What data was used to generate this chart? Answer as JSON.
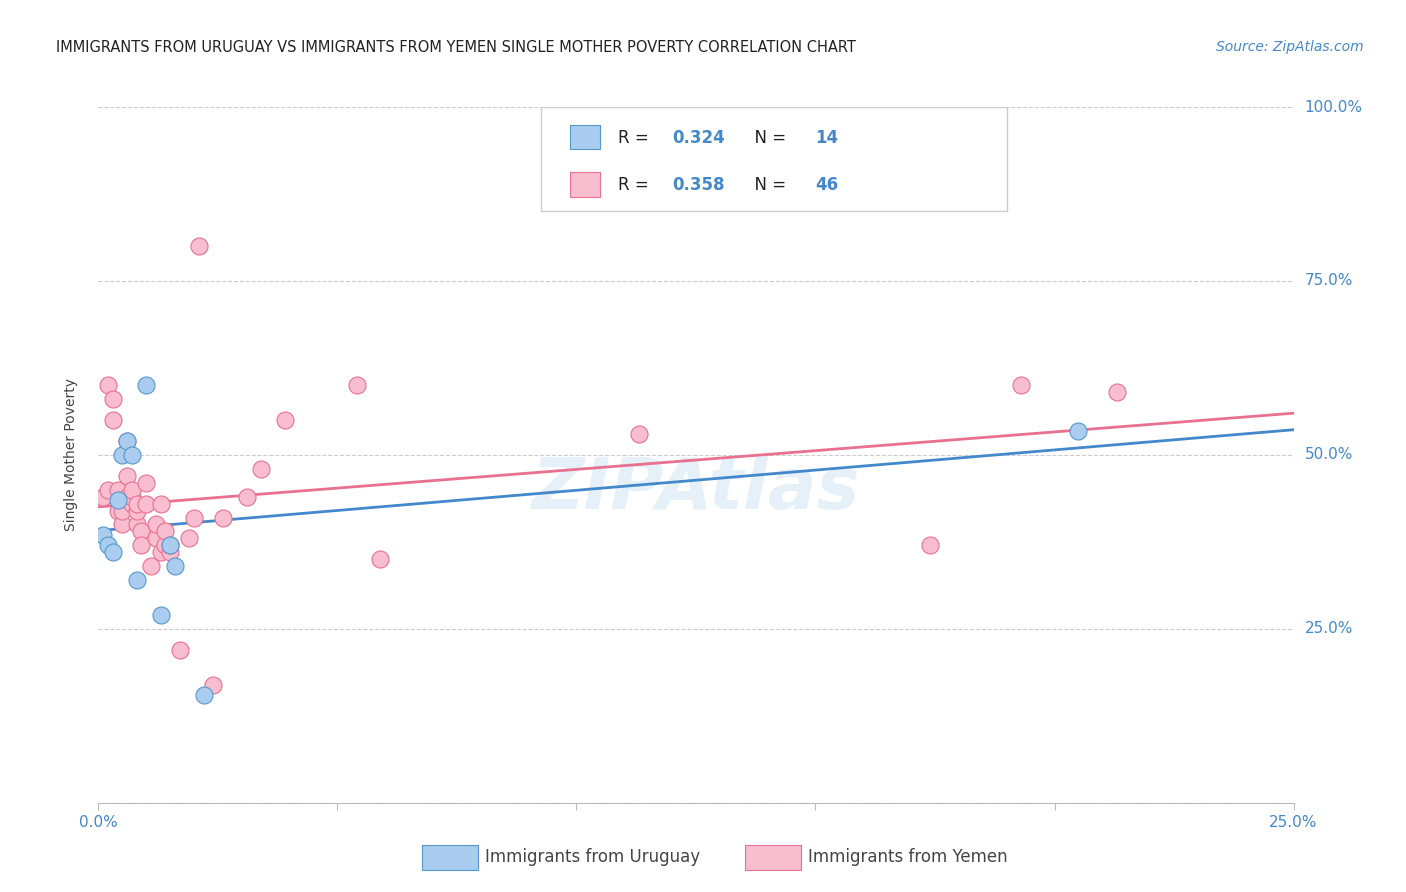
{
  "title": "IMMIGRANTS FROM URUGUAY VS IMMIGRANTS FROM YEMEN SINGLE MOTHER POVERTY CORRELATION CHART",
  "source": "Source: ZipAtlas.com",
  "ylabel": "Single Mother Poverty",
  "xlim": [
    0,
    0.25
  ],
  "ylim": [
    0,
    1.0
  ],
  "xticks": [
    0.0,
    0.05,
    0.1,
    0.15,
    0.2,
    0.25
  ],
  "yticks": [
    0.0,
    0.25,
    0.5,
    0.75,
    1.0
  ],
  "xticklabels": [
    "0.0%",
    "",
    "",
    "",
    "",
    "25.0%"
  ],
  "yticklabels_right": [
    "",
    "25.0%",
    "50.0%",
    "75.0%",
    "100.0%"
  ],
  "watermark": "ZIPAtlas",
  "uruguay_color": "#aaccee",
  "yemen_color": "#f9bdd0",
  "uruguay_edge_color": "#5599cc",
  "yemen_edge_color": "#e87090",
  "uruguay_line_color": "#4488cc",
  "yemen_line_color": "#e87090",
  "R_uruguay": 0.324,
  "N_uruguay": 14,
  "R_yemen": 0.358,
  "N_yemen": 46,
  "uruguay_x": [
    0.001,
    0.002,
    0.003,
    0.004,
    0.005,
    0.006,
    0.007,
    0.008,
    0.01,
    0.013,
    0.015,
    0.016,
    0.022,
    0.205
  ],
  "uruguay_y": [
    0.385,
    0.37,
    0.36,
    0.435,
    0.5,
    0.52,
    0.5,
    0.32,
    0.6,
    0.27,
    0.37,
    0.34,
    0.155,
    0.535
  ],
  "yemen_x": [
    0.001,
    0.002,
    0.002,
    0.003,
    0.003,
    0.004,
    0.004,
    0.005,
    0.005,
    0.006,
    0.006,
    0.006,
    0.007,
    0.007,
    0.007,
    0.008,
    0.008,
    0.008,
    0.009,
    0.009,
    0.01,
    0.01,
    0.011,
    0.012,
    0.012,
    0.013,
    0.013,
    0.014,
    0.014,
    0.015,
    0.015,
    0.017,
    0.019,
    0.02,
    0.021,
    0.024,
    0.026,
    0.031,
    0.034,
    0.039,
    0.054,
    0.059,
    0.113,
    0.174,
    0.193,
    0.213
  ],
  "yemen_y": [
    0.44,
    0.45,
    0.6,
    0.55,
    0.58,
    0.42,
    0.45,
    0.4,
    0.42,
    0.52,
    0.47,
    0.44,
    0.43,
    0.44,
    0.45,
    0.4,
    0.42,
    0.43,
    0.39,
    0.37,
    0.43,
    0.46,
    0.34,
    0.38,
    0.4,
    0.36,
    0.43,
    0.37,
    0.39,
    0.36,
    0.37,
    0.22,
    0.38,
    0.41,
    0.8,
    0.17,
    0.41,
    0.44,
    0.48,
    0.55,
    0.6,
    0.35,
    0.53,
    0.37,
    0.6,
    0.59
  ],
  "title_fontsize": 10.5,
  "axis_label_fontsize": 10,
  "tick_fontsize": 11,
  "legend_fontsize": 12,
  "source_fontsize": 10,
  "background_color": "#ffffff",
  "grid_color": "#cccccc",
  "tick_color": "#4488cc"
}
